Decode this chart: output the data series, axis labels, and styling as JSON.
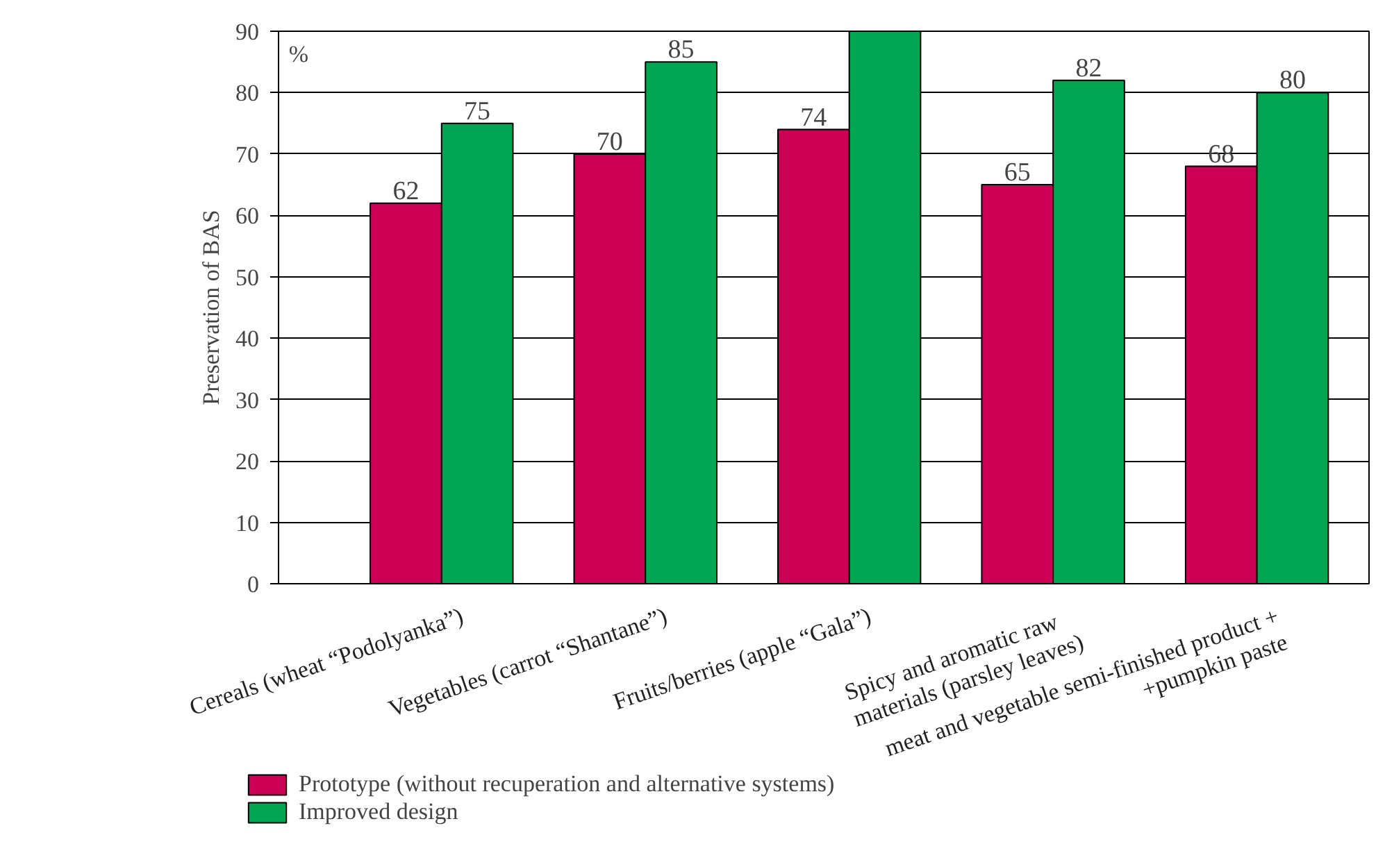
{
  "chart_data": {
    "type": "bar",
    "ylabel": "Preservation of BAS",
    "annotations": [
      "%"
    ],
    "categories": [
      "Cereals (wheat “Podolyanka”)",
      "Vegetables (carrot “Shantane”)",
      "Fruits/berries (apple “Gala”)",
      "Spicy  and  aromatic  raw\nmaterials (parsley leaves)",
      "meat and vegetable semi-finished product +\n+pumpkin paste"
    ],
    "series": [
      {
        "name": "Prototype (without recuperation and alternative systems)",
        "color": "#cc0055",
        "values": [
          62,
          70,
          74,
          65,
          68
        ],
        "value_labels": [
          "62",
          "70",
          "74",
          "65",
          "68"
        ]
      },
      {
        "name": "Improved design",
        "color": "#00a651",
        "values": [
          75,
          85,
          90,
          82,
          80
        ],
        "value_labels": [
          "75",
          "85",
          null,
          "82",
          "80"
        ]
      }
    ],
    "ylim": [
      0,
      90
    ],
    "yticks": [
      0,
      10,
      20,
      30,
      40,
      50,
      60,
      70,
      80,
      90
    ],
    "grid": "y",
    "legend": "bottom"
  }
}
